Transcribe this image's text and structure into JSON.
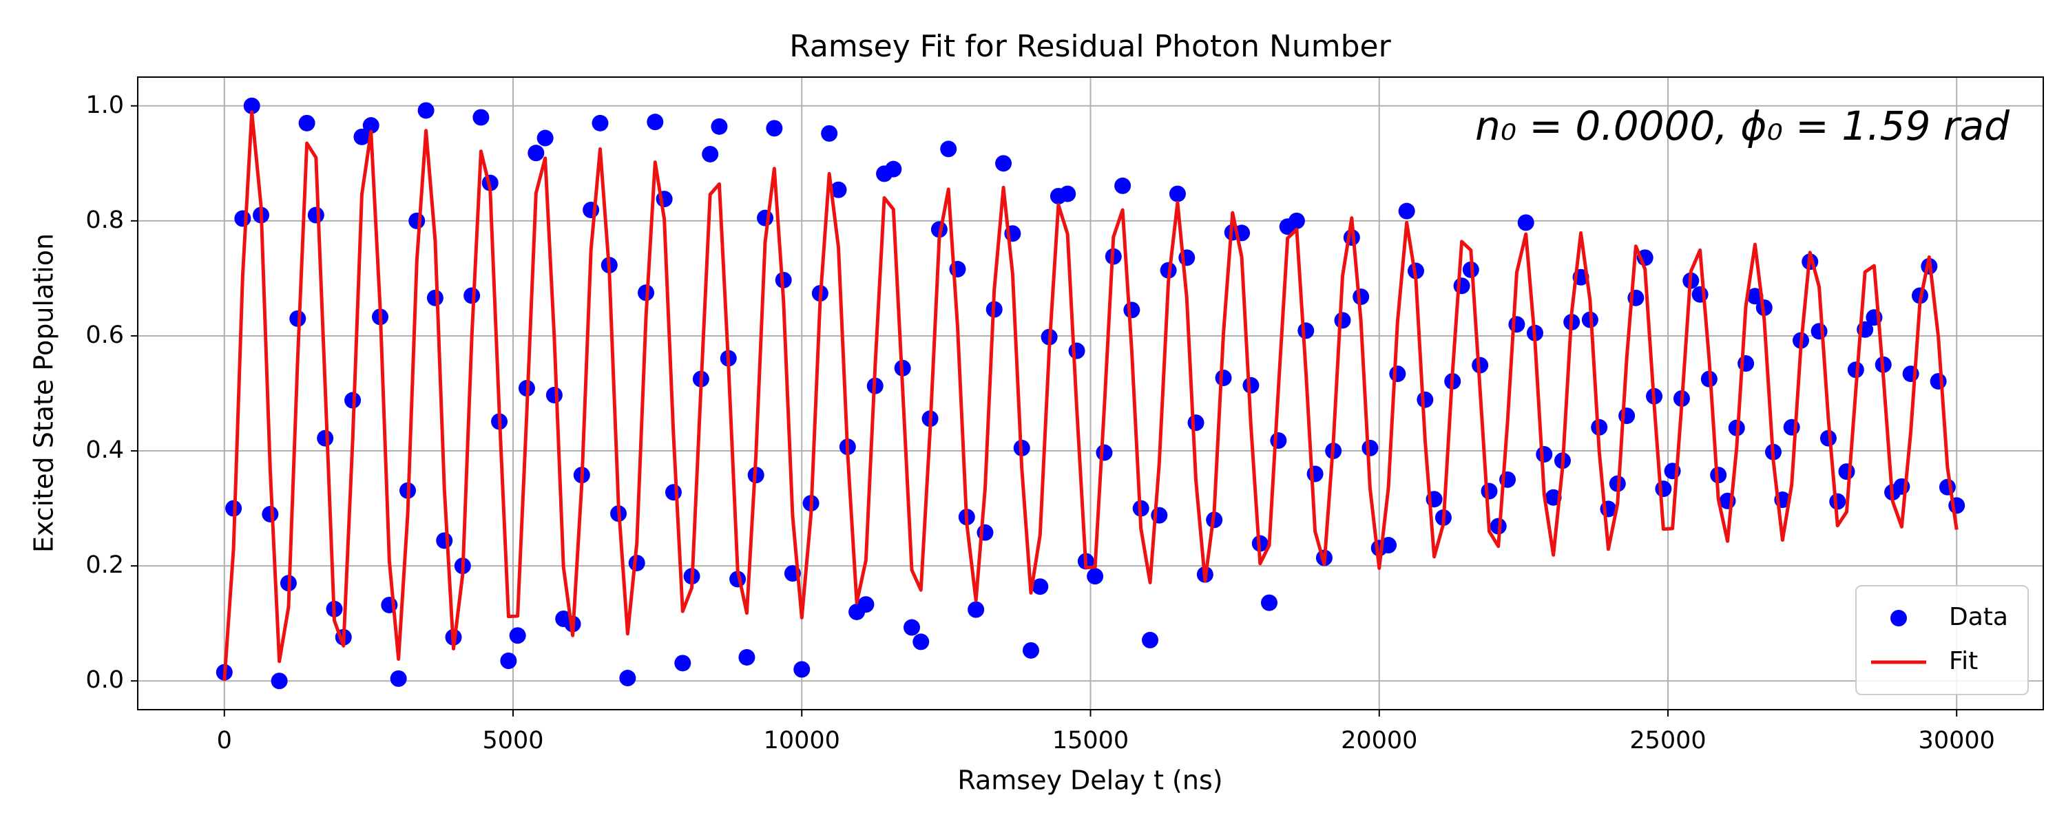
{
  "chart_data": {
    "type": "line",
    "title": "Ramsey Fit for Residual Photon Number",
    "xlabel": "Ramsey Delay t (ns)",
    "ylabel": "Excited State Population",
    "annotation": "n₀ = 0.0000, ϕ₀ = 1.59 rad",
    "xlim": [
      -1500,
      31500
    ],
    "ylim": [
      -0.05,
      1.05
    ],
    "xticks": [
      0,
      5000,
      10000,
      15000,
      20000,
      25000,
      30000
    ],
    "yticks": [
      {
        "value": 0,
        "label": "0.0"
      },
      0.2,
      0.4,
      0.6,
      0.8,
      {
        "value": 1,
        "label": "1.0"
      }
    ],
    "grid": true,
    "legend": "lower right",
    "x": [
      0,
      159,
      317,
      476,
      635,
      794,
      952,
      1111,
      1270,
      1429,
      1587,
      1746,
      1905,
      2063,
      2222,
      2381,
      2540,
      2698,
      2857,
      3016,
      3175,
      3333,
      3492,
      3651,
      3810,
      3968,
      4127,
      4286,
      4444,
      4603,
      4762,
      4921,
      5079,
      5238,
      5397,
      5556,
      5714,
      5873,
      6032,
      6190,
      6349,
      6508,
      6667,
      6825,
      6984,
      7143,
      7302,
      7460,
      7619,
      7778,
      7937,
      8095,
      8254,
      8413,
      8571,
      8730,
      8889,
      9048,
      9206,
      9365,
      9524,
      9683,
      9841,
      10000,
      10159,
      10317,
      10476,
      10635,
      10794,
      10952,
      11111,
      11270,
      11429,
      11587,
      11746,
      11905,
      12063,
      12222,
      12381,
      12540,
      12698,
      12857,
      13016,
      13175,
      13333,
      13492,
      13651,
      13810,
      13968,
      14127,
      14286,
      14444,
      14603,
      14762,
      14921,
      15079,
      15238,
      15397,
      15556,
      15714,
      15873,
      16032,
      16190,
      16349,
      16508,
      16667,
      16825,
      16984,
      17143,
      17302,
      17460,
      17619,
      17778,
      17937,
      18095,
      18254,
      18413,
      18571,
      18730,
      18889,
      19048,
      19206,
      19365,
      19524,
      19683,
      19841,
      20000,
      20159,
      20317,
      20476,
      20635,
      20794,
      20952,
      21111,
      21270,
      21429,
      21587,
      21746,
      21905,
      22063,
      22222,
      22381,
      22540,
      22698,
      22857,
      23016,
      23175,
      23333,
      23492,
      23651,
      23810,
      23968,
      24127,
      24286,
      24444,
      24603,
      24762,
      24921,
      25079,
      25238,
      25397,
      25556,
      25714,
      25873,
      26032,
      26190,
      26349,
      26508,
      26667,
      26825,
      26984,
      27143,
      27302,
      27460,
      27619,
      27778,
      27937,
      28095,
      28254,
      28413,
      28571,
      28730,
      28889,
      29048,
      29206,
      29365,
      29524,
      29683,
      29841,
      30000
    ],
    "series": [
      {
        "name": "Data",
        "kind": "scatter",
        "color": "#0000ff",
        "values": [
          0.015,
          0.3,
          0.804,
          1.0,
          0.81,
          0.29,
          0.0,
          0.17,
          0.63,
          0.97,
          0.81,
          0.422,
          0.125,
          0.076,
          0.488,
          0.946,
          0.966,
          0.633,
          0.132,
          0.004,
          0.331,
          0.8,
          0.992,
          0.666,
          0.244,
          0.076,
          0.2,
          0.67,
          0.98,
          0.866,
          0.451,
          0.035,
          0.079,
          0.509,
          0.918,
          0.944,
          0.497,
          0.108,
          0.099,
          0.358,
          0.819,
          0.97,
          0.723,
          0.291,
          0.005,
          0.205,
          0.675,
          0.972,
          0.838,
          0.328,
          0.031,
          0.182,
          0.525,
          0.916,
          0.964,
          0.561,
          0.177,
          0.041,
          0.358,
          0.805,
          0.961,
          0.697,
          0.187,
          0.02,
          0.309,
          0.674,
          0.952,
          0.854,
          0.407,
          0.12,
          0.133,
          0.513,
          0.882,
          0.89,
          0.544,
          0.093,
          0.068,
          0.456,
          0.785,
          0.925,
          0.716,
          0.285,
          0.124,
          0.258,
          0.646,
          0.9,
          0.778,
          0.405,
          0.053,
          0.164,
          0.598,
          0.843,
          0.847,
          0.574,
          0.208,
          0.182,
          0.397,
          0.738,
          0.861,
          0.645,
          0.3,
          0.071,
          0.288,
          0.714,
          0.847,
          0.736,
          0.449,
          0.185,
          0.28,
          0.527,
          0.78,
          0.779,
          0.514,
          0.239,
          0.136,
          0.418,
          0.79,
          0.8,
          0.609,
          0.36,
          0.214,
          0.4,
          0.627,
          0.771,
          0.668,
          0.405,
          0.231,
          0.236,
          0.534,
          0.817,
          0.713,
          0.489,
          0.316,
          0.284,
          0.521,
          0.687,
          0.715,
          0.549,
          0.33,
          0.269,
          0.35,
          0.62,
          0.797,
          0.605,
          0.394,
          0.319,
          0.383,
          0.624,
          0.702,
          0.628,
          0.441,
          0.299,
          0.343,
          0.461,
          0.666,
          0.736,
          0.495,
          0.334,
          0.365,
          0.491,
          0.696,
          0.672,
          0.525,
          0.358,
          0.313,
          0.44,
          0.552,
          0.669,
          0.649,
          0.398,
          0.315,
          0.441,
          0.592,
          0.729,
          0.608,
          0.422,
          0.312,
          0.364,
          0.541,
          0.611,
          0.632,
          0.55,
          0.328,
          0.338,
          0.534,
          0.67,
          0.721,
          0.521,
          0.337,
          0.305
        ]
      },
      {
        "name": "Fit",
        "kind": "line",
        "color": "#ee1111",
        "values": [
          0.0,
          0.23,
          0.704,
          0.989,
          0.826,
          0.367,
          0.034,
          0.128,
          0.56,
          0.935,
          0.91,
          0.512,
          0.105,
          0.061,
          0.418,
          0.846,
          0.955,
          0.649,
          0.209,
          0.038,
          0.289,
          0.73,
          0.957,
          0.766,
          0.334,
          0.056,
          0.185,
          0.6,
          0.921,
          0.855,
          0.467,
          0.112,
          0.113,
          0.467,
          0.848,
          0.909,
          0.597,
          0.198,
          0.079,
          0.343,
          0.749,
          0.925,
          0.712,
          0.307,
          0.082,
          0.239,
          0.633,
          0.902,
          0.803,
          0.428,
          0.121,
          0.162,
          0.51,
          0.846,
          0.864,
          0.55,
          0.193,
          0.118,
          0.392,
          0.763,
          0.891,
          0.662,
          0.287,
          0.11,
          0.289,
          0.659,
          0.882,
          0.754,
          0.396,
          0.136,
          0.21,
          0.547,
          0.84,
          0.82,
          0.509,
          0.193,
          0.158,
          0.436,
          0.77,
          0.855,
          0.616,
          0.274,
          0.14,
          0.335,
          0.68,
          0.858,
          0.708,
          0.37,
          0.153,
          0.254,
          0.578,
          0.828,
          0.777,
          0.474,
          0.197,
          0.198,
          0.474,
          0.772,
          0.819,
          0.575,
          0.265,
          0.171,
          0.378,
          0.694,
          0.832,
          0.666,
          0.349,
          0.174,
          0.296,
          0.604,
          0.814,
          0.737,
          0.444,
          0.204,
          0.236,
          0.508,
          0.77,
          0.785,
          0.539,
          0.26,
          0.203,
          0.416,
          0.704,
          0.805,
          0.626,
          0.335,
          0.196,
          0.336,
          0.624,
          0.797,
          0.698,
          0.419,
          0.216,
          0.273,
          0.537,
          0.764,
          0.749,
          0.507,
          0.26,
          0.234,
          0.45,
          0.71,
          0.777,
          0.59,
          0.324,
          0.219,
          0.372,
          0.64,
          0.779,
          0.662,
          0.399,
          0.229,
          0.308,
          0.561,
          0.756,
          0.716,
          0.48,
          0.264,
          0.265,
          0.48,
          0.712,
          0.749,
          0.559,
          0.316,
          0.243,
          0.405,
          0.652,
          0.759,
          0.629,
          0.383,
          0.245,
          0.341,
          0.581,
          0.745,
          0.685,
          0.456,
          0.27,
          0.294,
          0.506,
          0.711,
          0.722,
          0.53,
          0.313,
          0.268,
          0.434,
          0.659,
          0.737,
          0.598,
          0.371,
          0.263
        ]
      }
    ]
  }
}
